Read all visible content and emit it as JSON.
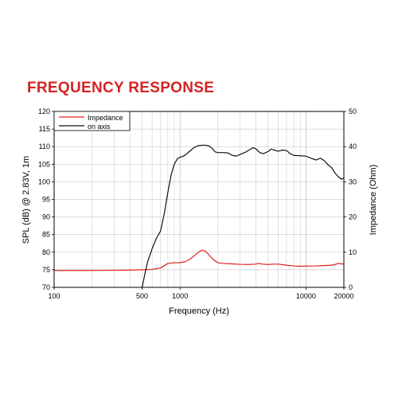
{
  "page_heading": "FREQUENCY RESPONSE",
  "colors": {
    "heading": "#d42323",
    "impedance": "#e02020",
    "spl": "#111111",
    "axis": "#000000",
    "grid": "#b9b9b9"
  },
  "chart_data": {
    "type": "line",
    "title": "",
    "xlabel": "Frequency (Hz)",
    "ylabel": "SPL (dB) @ 2.83V, 1m",
    "y2label": "Impedance (Ohm)",
    "xscale": "log",
    "xlim": [
      100,
      20000
    ],
    "ylim": [
      70,
      120
    ],
    "y2lim": [
      0,
      50
    ],
    "grid": true,
    "legend_position": "top-left",
    "x_tick_labels": [
      "100",
      "500",
      "1000",
      "10000",
      "20000"
    ],
    "y_tick_labels": [
      "70",
      "75",
      "80",
      "85",
      "90",
      "95",
      "100",
      "105",
      "110",
      "115",
      "120"
    ],
    "y2_tick_labels": [
      "0",
      "10",
      "20",
      "30",
      "40",
      "50"
    ],
    "series": [
      {
        "name": "Impedance",
        "axis": "right",
        "color": "#e02020",
        "points": [
          [
            100,
            4.8
          ],
          [
            200,
            4.8
          ],
          [
            300,
            4.85
          ],
          [
            400,
            4.9
          ],
          [
            500,
            5.0
          ],
          [
            600,
            5.1
          ],
          [
            700,
            5.5
          ],
          [
            800,
            6.8
          ],
          [
            900,
            7.0
          ],
          [
            1000,
            7.0
          ],
          [
            1100,
            7.3
          ],
          [
            1200,
            8.0
          ],
          [
            1300,
            9.0
          ],
          [
            1400,
            10.0
          ],
          [
            1500,
            10.6
          ],
          [
            1600,
            10.2
          ],
          [
            1700,
            9.2
          ],
          [
            1800,
            8.2
          ],
          [
            1900,
            7.5
          ],
          [
            2000,
            7.0
          ],
          [
            2200,
            6.8
          ],
          [
            2500,
            6.7
          ],
          [
            3000,
            6.55
          ],
          [
            3500,
            6.5
          ],
          [
            4000,
            6.6
          ],
          [
            4200,
            6.8
          ],
          [
            4500,
            6.6
          ],
          [
            5000,
            6.5
          ],
          [
            5500,
            6.6
          ],
          [
            6000,
            6.6
          ],
          [
            7000,
            6.3
          ],
          [
            8000,
            6.1
          ],
          [
            9000,
            6.0
          ],
          [
            10000,
            6.05
          ],
          [
            12000,
            6.1
          ],
          [
            14000,
            6.2
          ],
          [
            16000,
            6.3
          ],
          [
            17000,
            6.5
          ],
          [
            18000,
            6.8
          ],
          [
            19000,
            6.7
          ],
          [
            20000,
            6.6
          ]
        ]
      },
      {
        "name": "on axis",
        "axis": "left",
        "color": "#111111",
        "points": [
          [
            500,
            70.0
          ],
          [
            520,
            73.0
          ],
          [
            550,
            77.0
          ],
          [
            600,
            81.0
          ],
          [
            650,
            84.0
          ],
          [
            700,
            86.0
          ],
          [
            750,
            91.0
          ],
          [
            800,
            97.0
          ],
          [
            850,
            102.0
          ],
          [
            900,
            105.0
          ],
          [
            950,
            106.5
          ],
          [
            1000,
            107.0
          ],
          [
            1050,
            107.2
          ],
          [
            1100,
            107.6
          ],
          [
            1200,
            108.8
          ],
          [
            1300,
            109.8
          ],
          [
            1400,
            110.3
          ],
          [
            1500,
            110.4
          ],
          [
            1600,
            110.4
          ],
          [
            1700,
            110.2
          ],
          [
            1800,
            109.5
          ],
          [
            1900,
            108.5
          ],
          [
            2000,
            108.3
          ],
          [
            2200,
            108.3
          ],
          [
            2400,
            108.2
          ],
          [
            2600,
            107.5
          ],
          [
            2800,
            107.3
          ],
          [
            3000,
            107.8
          ],
          [
            3300,
            108.4
          ],
          [
            3600,
            109.2
          ],
          [
            3800,
            109.7
          ],
          [
            4000,
            109.4
          ],
          [
            4300,
            108.3
          ],
          [
            4600,
            108.0
          ],
          [
            5000,
            108.6
          ],
          [
            5300,
            109.3
          ],
          [
            5600,
            109.0
          ],
          [
            6000,
            108.7
          ],
          [
            6500,
            109.0
          ],
          [
            7000,
            108.9
          ],
          [
            7500,
            108.0
          ],
          [
            8000,
            107.5
          ],
          [
            9000,
            107.4
          ],
          [
            10000,
            107.3
          ],
          [
            11000,
            106.7
          ],
          [
            12000,
            106.2
          ],
          [
            13000,
            106.7
          ],
          [
            14000,
            106.0
          ],
          [
            15000,
            104.8
          ],
          [
            16000,
            104.0
          ],
          [
            17000,
            102.5
          ],
          [
            18000,
            101.5
          ],
          [
            19000,
            100.8
          ],
          [
            20000,
            101.0
          ]
        ]
      }
    ]
  }
}
